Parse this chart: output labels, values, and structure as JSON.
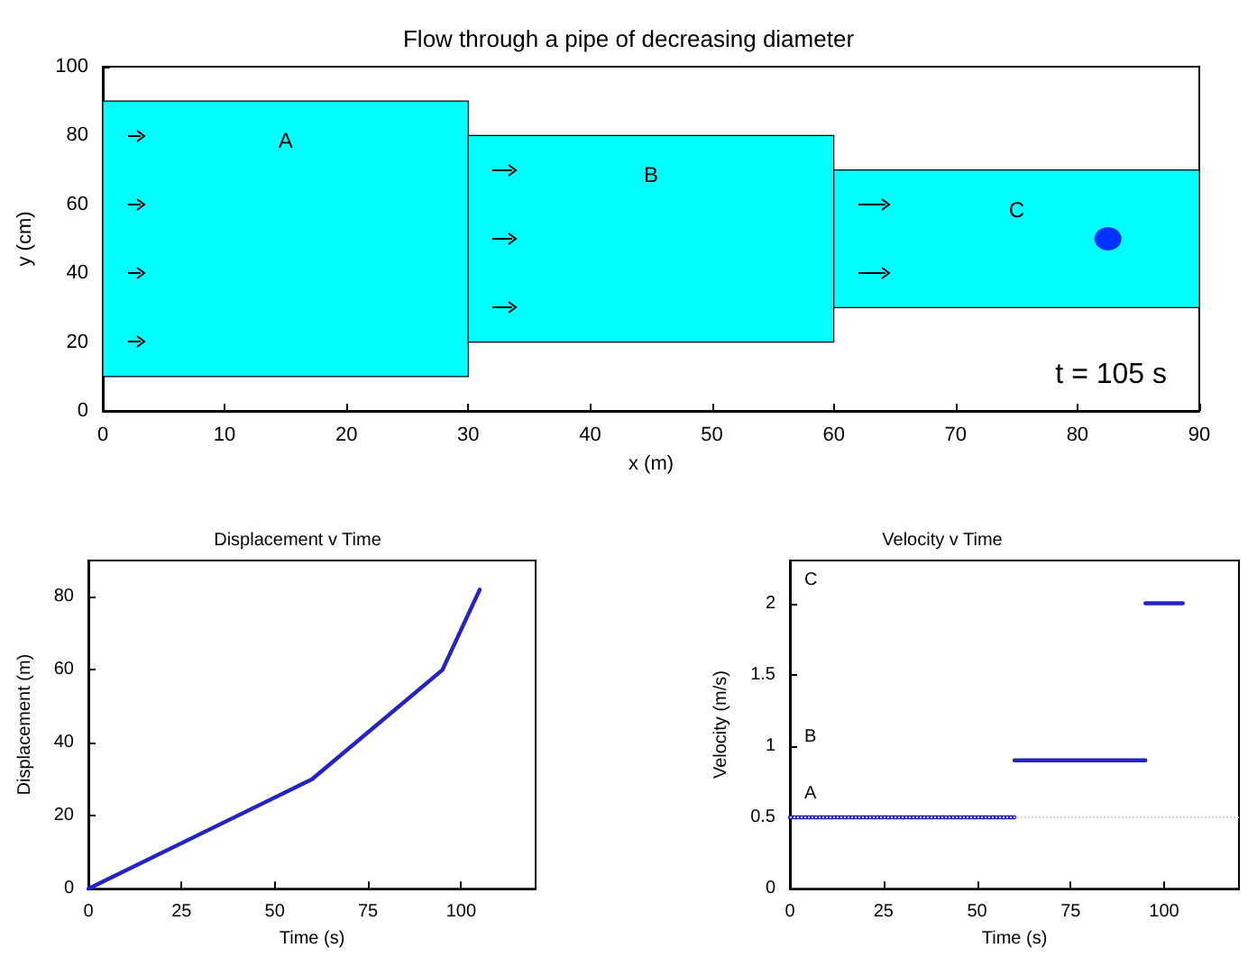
{
  "chart_data": [
    {
      "type": "bar",
      "title": "Flow through a pipe of decreasing diameter",
      "xlabel": "x (m)",
      "ylabel": "y (cm)",
      "series": [
        {
          "color": "#00ffff",
          "x": [
            15,
            45,
            75
          ],
          "base": [
            10,
            20,
            30
          ],
          "values": [
            80,
            60,
            40
          ]
        },
        {
          "type": "scatter",
          "color": "#0000ff",
          "x": [
            82.5
          ],
          "values": [
            50
          ],
          "marker": "circle"
        }
      ],
      "xlim": [
        0,
        90
      ],
      "xticks": [
        0,
        10,
        20,
        30,
        40,
        50,
        60,
        70,
        80,
        90
      ],
      "ylim": [
        0,
        100
      ],
      "yticks": [
        0,
        20,
        40,
        60,
        80,
        100
      ],
      "grid": false,
      "annotations": [
        "A",
        "B",
        "C",
        "t = 105 s"
      ]
    },
    {
      "type": "line",
      "title": "Displacement v Time",
      "xlabel": "Time (s)",
      "ylabel": "Displacement (m)",
      "series": [
        {
          "color": "#2323c8",
          "x": [
            0,
            60,
            95,
            105
          ],
          "values": [
            0,
            30,
            60,
            82
          ]
        }
      ],
      "xlim": [
        0,
        120
      ],
      "xticks": [
        0,
        25,
        50,
        75,
        100
      ],
      "ylim": [
        0,
        90
      ],
      "yticks": [
        0,
        20,
        40,
        60,
        80
      ],
      "grid": false,
      "line_style": "solid"
    },
    {
      "type": "line",
      "title": "Velocity v Time",
      "xlabel": "Time (s)",
      "ylabel": "Velocity (m/s)",
      "series": [
        {
          "color": "#2323c8",
          "x": [
            0,
            60
          ],
          "values": [
            0.5,
            0.5
          ]
        },
        {
          "color": "#2323c8",
          "x": [
            60,
            95
          ],
          "values": [
            0.9,
            0.9
          ]
        },
        {
          "color": "#2323c8",
          "x": [
            95,
            105
          ],
          "values": [
            2,
            2
          ]
        }
      ],
      "xlim": [
        0,
        120
      ],
      "xticks": [
        0,
        25,
        50,
        75,
        100
      ],
      "ylim": [
        0,
        2.3
      ],
      "yticks": [
        0,
        0.5,
        1,
        1.5,
        2
      ],
      "grid": false,
      "line_style": "solid",
      "ref_lines": [
        {
          "axis": "y",
          "value": 0.5,
          "color": "#d0d0d0",
          "line_style": "dotted"
        }
      ],
      "annotations": [
        "A",
        "B",
        "C"
      ]
    }
  ]
}
